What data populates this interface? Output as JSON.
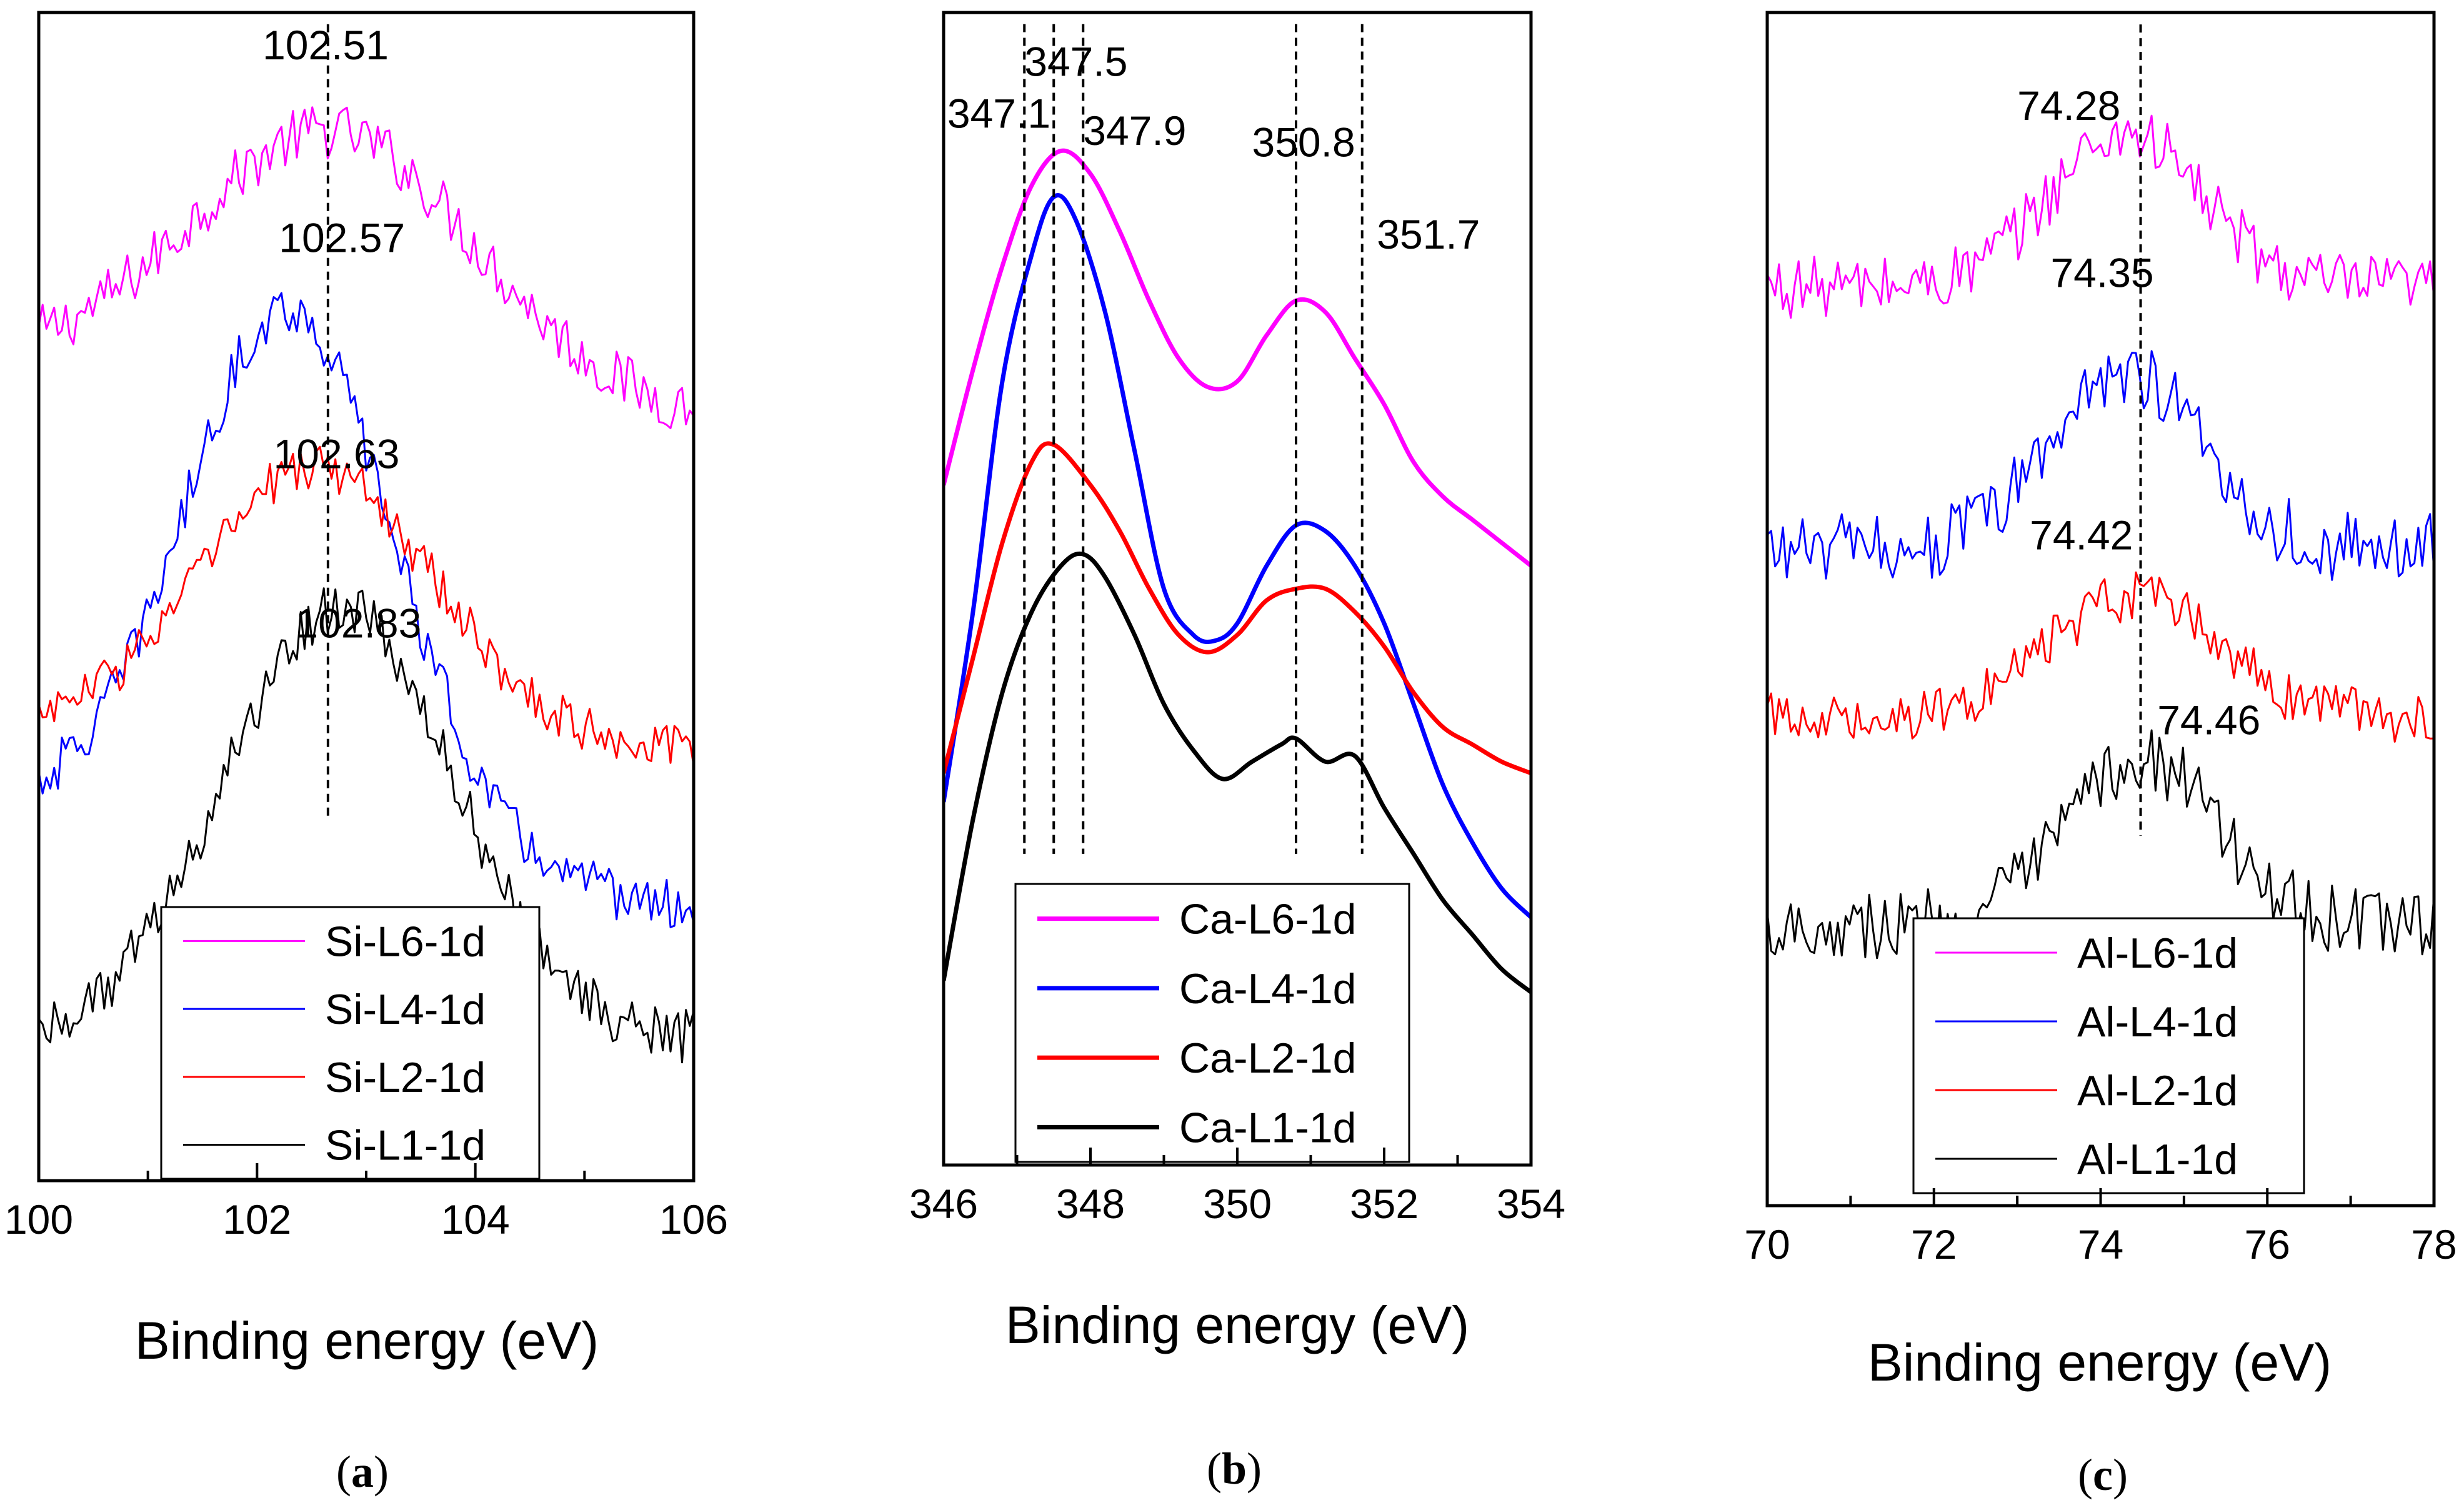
{
  "chart_data": [
    {
      "type": "line",
      "panel_label": "(a)",
      "panel_letter": "a",
      "xlabel": "Binding energy (eV)",
      "ylabel": "",
      "xlim": [
        100,
        106
      ],
      "ylim": [
        0,
        100
      ],
      "xticks": [
        100,
        102,
        104,
        106
      ],
      "grid": false,
      "legend_position": "bottom-center",
      "series": [
        {
          "name": "Si-L6-1d",
          "color": "#ff00ff",
          "peak": 102.7,
          "width": 1.3,
          "base": 70,
          "amp": 22,
          "noise": 2.4,
          "slope": -1.2
        },
        {
          "name": "Si-L4-1d",
          "color": "#0000ff",
          "peak": 102.3,
          "width": 0.95,
          "base": 32,
          "amp": 46,
          "noise": 2.2,
          "slope": -2.2
        },
        {
          "name": "Si-L2-1d",
          "color": "#ff0000",
          "peak": 102.55,
          "width": 1.05,
          "base": 39,
          "amp": 23,
          "noise": 2.0,
          "slope": -0.5
        },
        {
          "name": "Si-L1-1d",
          "color": "#000000",
          "peak": 102.75,
          "width": 1.05,
          "base": 12,
          "amp": 37,
          "noise": 2.3,
          "slope": 0
        }
      ],
      "vlines": [
        102.65
      ],
      "annotations": [
        {
          "text": "102.51",
          "x": 102.05,
          "y": 96
        },
        {
          "text": "102.57",
          "x": 102.2,
          "y": 79.5
        },
        {
          "text": "102.63",
          "x": 102.15,
          "y": 61
        },
        {
          "text": "102.83",
          "x": 102.35,
          "y": 46.5
        }
      ]
    },
    {
      "type": "line",
      "panel_label": "(b)",
      "panel_letter": "b",
      "xlabel": "Binding energy (eV)",
      "ylabel": "",
      "xlim": [
        346,
        354
      ],
      "ylim": [
        0,
        100
      ],
      "xticks": [
        346,
        348,
        350,
        352,
        354
      ],
      "grid": false,
      "legend_position": "bottom-center",
      "series": [
        {
          "name": "Ca-L6-1d",
          "color": "#ff00ff",
          "points": [
            [
              346,
              59
            ],
            [
              346.4,
              69
            ],
            [
              346.8,
              78
            ],
            [
              347.2,
              85
            ],
            [
              347.6,
              88
            ],
            [
              348,
              86
            ],
            [
              348.4,
              81
            ],
            [
              348.8,
              75
            ],
            [
              349.2,
              70
            ],
            [
              349.6,
              67.5
            ],
            [
              350,
              68
            ],
            [
              350.4,
              72
            ],
            [
              350.8,
              75
            ],
            [
              351.2,
              74
            ],
            [
              351.6,
              70
            ],
            [
              352,
              66
            ],
            [
              352.4,
              61
            ],
            [
              352.8,
              58
            ],
            [
              353.2,
              56
            ],
            [
              353.6,
              54
            ],
            [
              354,
              52
            ]
          ]
        },
        {
          "name": "Ca-L4-1d",
          "color": "#0000ff",
          "points": [
            [
              346,
              31.5
            ],
            [
              346.4,
              48
            ],
            [
              346.8,
              68
            ],
            [
              347.2,
              79
            ],
            [
              347.5,
              84
            ],
            [
              347.8,
              82
            ],
            [
              348.2,
              74
            ],
            [
              348.6,
              62
            ],
            [
              349,
              50
            ],
            [
              349.4,
              46
            ],
            [
              349.7,
              45.5
            ],
            [
              350,
              47
            ],
            [
              350.4,
              52
            ],
            [
              350.8,
              55.5
            ],
            [
              351.2,
              55
            ],
            [
              351.6,
              52
            ],
            [
              352,
              47
            ],
            [
              352.4,
              40
            ],
            [
              352.8,
              33
            ],
            [
              353.2,
              28
            ],
            [
              353.6,
              24
            ],
            [
              354,
              21.5
            ]
          ]
        },
        {
          "name": "Ca-L2-1d",
          "color": "#ff0000",
          "points": [
            [
              346,
              34
            ],
            [
              346.4,
              44
            ],
            [
              346.8,
              54
            ],
            [
              347.2,
              61
            ],
            [
              347.5,
              62.5
            ],
            [
              348,
              59
            ],
            [
              348.4,
              55
            ],
            [
              348.8,
              50
            ],
            [
              349.2,
              46
            ],
            [
              349.6,
              44.5
            ],
            [
              350,
              46
            ],
            [
              350.4,
              49
            ],
            [
              350.8,
              50
            ],
            [
              351.2,
              50
            ],
            [
              351.6,
              48
            ],
            [
              352,
              45
            ],
            [
              352.4,
              41
            ],
            [
              352.8,
              38
            ],
            [
              353.2,
              36.5
            ],
            [
              353.6,
              35
            ],
            [
              354,
              34
            ]
          ]
        },
        {
          "name": "Ca-L1-1d",
          "color": "#000000",
          "points": [
            [
              346,
              16
            ],
            [
              346.4,
              30
            ],
            [
              346.8,
              41
            ],
            [
              347.2,
              48
            ],
            [
              347.6,
              52
            ],
            [
              347.9,
              53
            ],
            [
              348.2,
              51
            ],
            [
              348.6,
              46
            ],
            [
              349,
              40
            ],
            [
              349.4,
              36
            ],
            [
              349.8,
              33.5
            ],
            [
              350.2,
              35
            ],
            [
              350.6,
              36.5
            ],
            [
              350.8,
              37
            ],
            [
              351.2,
              35
            ],
            [
              351.6,
              35.5
            ],
            [
              352,
              31
            ],
            [
              352.4,
              27
            ],
            [
              352.8,
              23
            ],
            [
              353.2,
              20
            ],
            [
              353.6,
              17
            ],
            [
              354,
              15
            ]
          ]
        }
      ],
      "vlines": [
        347.1,
        347.5,
        347.9,
        350.8,
        351.7
      ],
      "annotations": [
        {
          "text": "347.5",
          "x": 347.1,
          "y": 94.5
        },
        {
          "text": "347.1",
          "x": 346.05,
          "y": 90
        },
        {
          "text": "347.9",
          "x": 347.9,
          "y": 88.5
        },
        {
          "text": "350.8",
          "x": 350.2,
          "y": 87.5
        },
        {
          "text": "351.7",
          "x": 351.9,
          "y": 79.5
        }
      ]
    },
    {
      "type": "line",
      "panel_label": "(c)",
      "panel_letter": "c",
      "xlabel": "Binding energy (eV)",
      "ylabel": "",
      "xlim": [
        70,
        78
      ],
      "ylim": [
        0,
        100
      ],
      "xticks": [
        70,
        72,
        74,
        76,
        78
      ],
      "grid": false,
      "legend_position": "bottom-center",
      "series": [
        {
          "name": "Al-L6-1d",
          "color": "#ff00ff",
          "peak": 74.3,
          "width": 0.9,
          "base": 77,
          "amp": 13,
          "noise": 2.6,
          "slope": 0
        },
        {
          "name": "Al-L4-1d",
          "color": "#0000ff",
          "peak": 74.3,
          "width": 0.9,
          "base": 55,
          "amp": 15,
          "noise": 3.0,
          "slope": 0
        },
        {
          "name": "Al-L2-1d",
          "color": "#ff0000",
          "peak": 74.4,
          "width": 1.0,
          "base": 41,
          "amp": 10,
          "noise": 2.2,
          "slope": 0
        },
        {
          "name": "Al-L1-1d",
          "color": "#000000",
          "peak": 74.5,
          "width": 0.9,
          "base": 23.5,
          "amp": 14,
          "noise": 2.8,
          "slope": 0
        }
      ],
      "vlines": [
        74.48
      ],
      "annotations": [
        {
          "text": "74.28",
          "x": 73.0,
          "y": 91
        },
        {
          "text": "74.35",
          "x": 73.4,
          "y": 77
        },
        {
          "text": "74.42",
          "x": 73.15,
          "y": 55
        },
        {
          "text": "74.46",
          "x": 74.68,
          "y": 39.5
        }
      ]
    }
  ]
}
